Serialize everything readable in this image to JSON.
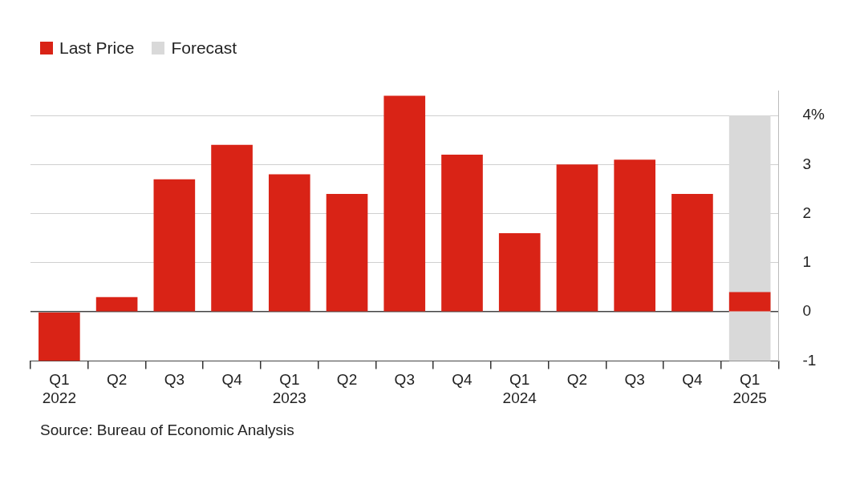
{
  "chart_data": {
    "type": "bar",
    "categories": [
      "Q1\n2022",
      "Q2",
      "Q3",
      "Q4",
      "Q1\n2023",
      "Q2",
      "Q3",
      "Q4",
      "Q1\n2024",
      "Q2",
      "Q3",
      "Q4",
      "Q1\n2025"
    ],
    "series": [
      {
        "name": "Last Price",
        "color": "#d92316",
        "values": [
          -1.0,
          0.3,
          2.7,
          3.4,
          2.8,
          2.4,
          4.4,
          3.2,
          1.6,
          3.0,
          3.1,
          2.4,
          0.4
        ]
      }
    ],
    "bands": [
      {
        "axis": "x",
        "from": "Q1\n2025",
        "to": "Q1\n2025",
        "label": "Forecast",
        "color": "#d9d9d9"
      }
    ],
    "ylim": [
      -1,
      4.5
    ],
    "yticks": [
      -1,
      0,
      1,
      2,
      3,
      {
        "value": 4,
        "label": "4%"
      }
    ],
    "grid": "y",
    "legend": "top left",
    "annotations": [
      "Source: Bureau of Economic Analysis"
    ]
  }
}
